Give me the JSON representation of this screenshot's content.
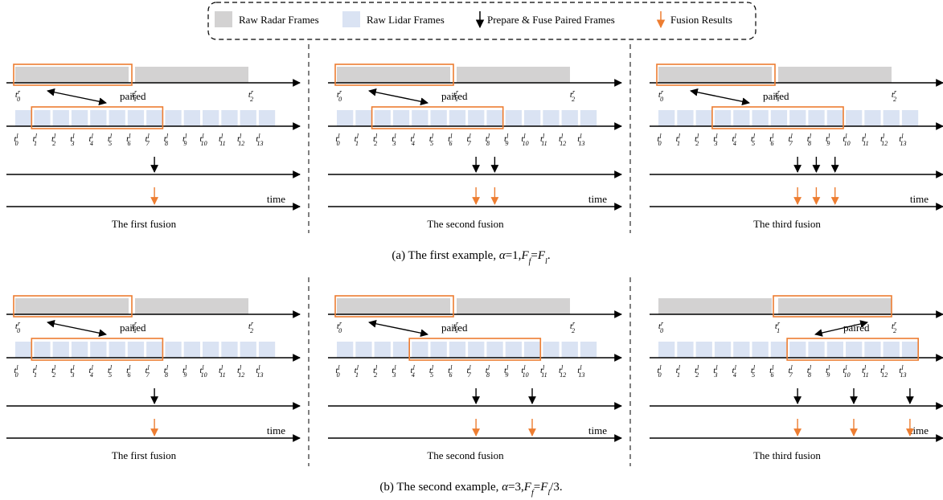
{
  "legend": {
    "radar": "Raw Radar Frames",
    "lidar": "Raw Lidar Frames",
    "prepare": "Prepare & Fuse Paired Frames",
    "results": "Fusion Results"
  },
  "colors": {
    "radar": "#d3d2d2",
    "lidar": "#dae3f3",
    "highlight": "#ed7d31",
    "arrow_black": "#000000",
    "arrow_orange": "#ed7d31"
  },
  "labels": {
    "paired": "paired",
    "time": "time"
  },
  "caption_a": "(a) The first example, α=1,F_f=F_l.",
  "caption_b": "(b) The second example, α=3,F_f=F_l/3.",
  "examples": [
    {
      "panels": [
        {
          "title": "The first fusion",
          "radar_box": [
            0,
            1
          ],
          "lidar_box": [
            0,
            7
          ],
          "paired_to": 1,
          "fused": [
            7
          ]
        },
        {
          "title": "The second fusion",
          "radar_box": [
            0,
            1
          ],
          "lidar_box": [
            1,
            8
          ],
          "paired_to": 1,
          "fused": [
            7,
            8
          ]
        },
        {
          "title": "The third fusion",
          "radar_box": [
            0,
            1
          ],
          "lidar_box": [
            2,
            9
          ],
          "paired_to": 1,
          "fused": [
            7,
            8,
            9
          ]
        }
      ]
    },
    {
      "panels": [
        {
          "title": "The first fusion",
          "radar_box": [
            0,
            1
          ],
          "lidar_box": [
            0,
            7
          ],
          "paired_to": 1,
          "fused": [
            7
          ]
        },
        {
          "title": "The second fusion",
          "radar_box": [
            0,
            1
          ],
          "lidar_box": [
            3,
            10
          ],
          "paired_to": 1,
          "fused": [
            7,
            10
          ]
        },
        {
          "title": "The third fusion",
          "radar_box": [
            1,
            2
          ],
          "lidar_box": [
            6,
            13
          ],
          "paired_to": 2,
          "fused": [
            7,
            10,
            13
          ]
        }
      ]
    }
  ]
}
